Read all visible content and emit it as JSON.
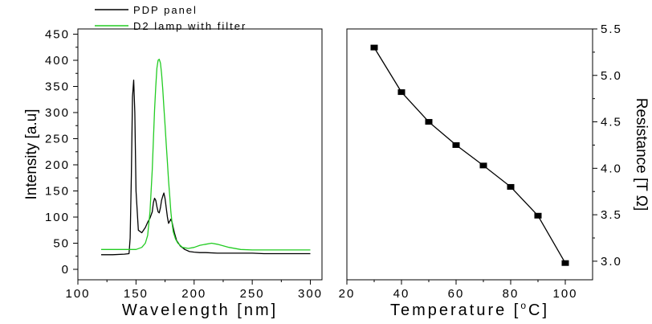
{
  "chart_data": [
    {
      "type": "line",
      "title": "",
      "xlabel": "Wavelength [nm]",
      "ylabel": "Intensity [a.u]",
      "xlim": [
        100,
        310
      ],
      "ylim": [
        -20,
        460
      ],
      "xticks": [
        100,
        150,
        200,
        250,
        300
      ],
      "yticks": [
        0,
        50,
        100,
        150,
        200,
        250,
        300,
        350,
        400,
        450
      ],
      "legend_position": "top-left, above plot",
      "series": [
        {
          "name": "PDP panel",
          "color": "#000000",
          "x": [
            120,
            130,
            140,
            144,
            145,
            146,
            147,
            148,
            149,
            150,
            152,
            155,
            158,
            160,
            162,
            164,
            165,
            166,
            167,
            168,
            169,
            170,
            171,
            172,
            173,
            174,
            175,
            176,
            177,
            178,
            179,
            180,
            181,
            182,
            183,
            185,
            188,
            192,
            196,
            200,
            205,
            210,
            220,
            230,
            240,
            250,
            260,
            270,
            280,
            290,
            300
          ],
          "y": [
            28,
            28,
            29,
            30,
            60,
            180,
            330,
            362,
            300,
            150,
            75,
            70,
            80,
            90,
            98,
            110,
            128,
            136,
            132,
            120,
            110,
            108,
            118,
            132,
            140,
            146,
            135,
            118,
            100,
            88,
            92,
            96,
            90,
            80,
            70,
            55,
            45,
            38,
            34,
            33,
            32,
            32,
            31,
            31,
            31,
            31,
            30,
            30,
            30,
            30,
            30
          ]
        },
        {
          "name": "D2 lamp with filter",
          "color": "#22cc22",
          "x": [
            120,
            130,
            140,
            150,
            155,
            158,
            160,
            162,
            164,
            165,
            166,
            167,
            168,
            169,
            170,
            171,
            172,
            173,
            174,
            175,
            176,
            177,
            178,
            179,
            180,
            181,
            182,
            184,
            186,
            190,
            195,
            200,
            205,
            210,
            215,
            220,
            225,
            230,
            240,
            250,
            260,
            270,
            280,
            290,
            300
          ],
          "y": [
            38,
            38,
            38,
            38,
            42,
            50,
            65,
            110,
            190,
            250,
            305,
            350,
            385,
            400,
            402,
            395,
            375,
            345,
            310,
            275,
            240,
            205,
            170,
            140,
            110,
            88,
            72,
            58,
            50,
            42,
            40,
            42,
            46,
            48,
            50,
            48,
            45,
            42,
            38,
            37,
            37,
            37,
            37,
            37,
            37
          ]
        }
      ]
    },
    {
      "type": "line",
      "title": "",
      "xlabel": "Temperature [°C]",
      "ylabel": "Resistance [T Ω]",
      "xlim": [
        20,
        110
      ],
      "ylim": [
        2.8,
        5.5
      ],
      "xticks": [
        20,
        40,
        60,
        80,
        100
      ],
      "yticks": [
        3.0,
        3.5,
        4.0,
        4.5,
        5.0,
        5.5
      ],
      "y_axis_side": "right",
      "markers": "filled-square",
      "series": [
        {
          "name": "",
          "color": "#000000",
          "x": [
            30,
            40,
            50,
            60,
            70,
            80,
            90,
            100
          ],
          "y": [
            5.3,
            4.82,
            4.5,
            4.25,
            4.03,
            3.8,
            3.49,
            2.98
          ]
        }
      ]
    }
  ],
  "labels": {
    "left_xlabel_text": "Wavelength [nm]",
    "left_ylabel_text": "Intensity [a.u]",
    "right_xlabel_pre": "Temperature [",
    "right_xlabel_sup": "o",
    "right_xlabel_post": "C]",
    "right_ylabel_text": "Resistance [T Ω]"
  }
}
